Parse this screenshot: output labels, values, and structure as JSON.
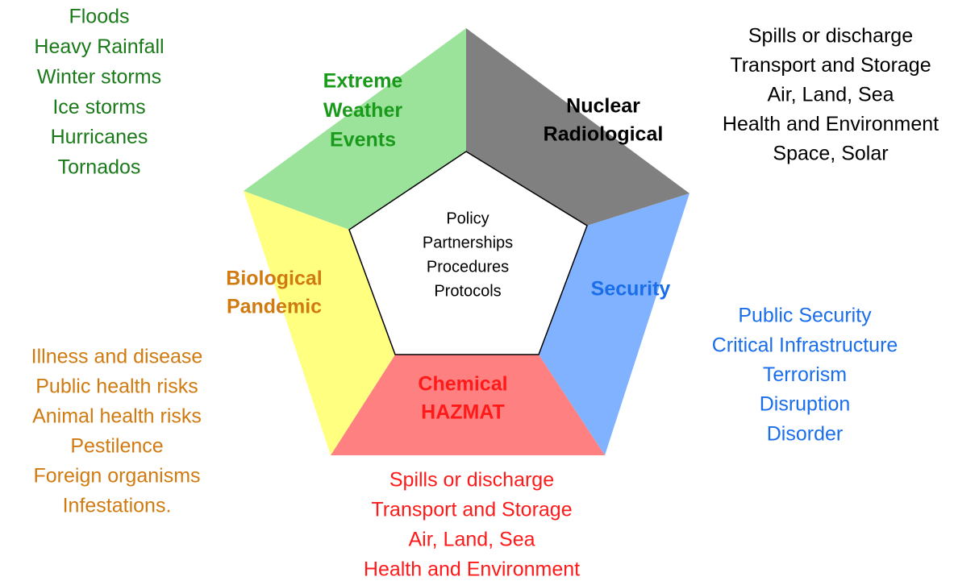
{
  "center": [
    "Policy",
    "Partnerships",
    "Procedures",
    "Protocols"
  ],
  "segments": [
    {
      "label": [
        "Extreme",
        "Weather",
        "Events"
      ],
      "items": [
        "Floods",
        "Heavy Rainfall",
        "Winter storms",
        "Ice storms",
        "Hurricanes",
        "Tornados"
      ]
    },
    {
      "label": [
        "Nuclear",
        "Radiological"
      ],
      "items": [
        "Spills or discharge",
        "Transport and Storage",
        "Air, Land, Sea",
        "Health and Environment",
        "Space, Solar"
      ]
    },
    {
      "label": [
        "Security"
      ],
      "items": [
        "Public Security",
        "Critical Infrastructure",
        "Terrorism",
        "Disruption",
        "Disorder"
      ]
    },
    {
      "label": [
        "Chemical",
        "HAZMAT"
      ],
      "items": [
        "Spills or discharge",
        "Transport and Storage",
        "Air, Land, Sea",
        "Health and Environment"
      ]
    },
    {
      "label": [
        "Biological",
        "Pandemic"
      ],
      "items": [
        "Illness and disease",
        "Public health risks",
        "Animal health risks",
        "Pestilence",
        "Foreign organisms",
        "Infestations."
      ]
    }
  ]
}
